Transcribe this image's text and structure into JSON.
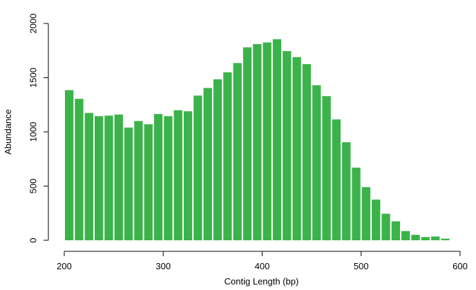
{
  "chart_data": {
    "type": "bar",
    "title": "",
    "xlabel": "Contig Length (bp)",
    "ylabel": "Abundance",
    "xlim": [
      200,
      600
    ],
    "ylim": [
      0,
      2000
    ],
    "x_ticks": [
      "200",
      "300",
      "400",
      "500",
      "600"
    ],
    "y_ticks": [
      "0",
      "500",
      "1000",
      "1500",
      "2000"
    ],
    "bar_color": "#3bb34a",
    "bin_width": 10,
    "bins": [
      {
        "x0": 200,
        "x1": 210,
        "value": 1385
      },
      {
        "x0": 210,
        "x1": 220,
        "value": 1305
      },
      {
        "x0": 220,
        "x1": 230,
        "value": 1175
      },
      {
        "x0": 230,
        "x1": 240,
        "value": 1145
      },
      {
        "x0": 240,
        "x1": 250,
        "value": 1150
      },
      {
        "x0": 250,
        "x1": 260,
        "value": 1160
      },
      {
        "x0": 260,
        "x1": 270,
        "value": 1040
      },
      {
        "x0": 270,
        "x1": 280,
        "value": 1100
      },
      {
        "x0": 280,
        "x1": 290,
        "value": 1070
      },
      {
        "x0": 290,
        "x1": 300,
        "value": 1165
      },
      {
        "x0": 300,
        "x1": 310,
        "value": 1145
      },
      {
        "x0": 310,
        "x1": 320,
        "value": 1200
      },
      {
        "x0": 320,
        "x1": 330,
        "value": 1190
      },
      {
        "x0": 330,
        "x1": 340,
        "value": 1335
      },
      {
        "x0": 340,
        "x1": 350,
        "value": 1405
      },
      {
        "x0": 350,
        "x1": 360,
        "value": 1485
      },
      {
        "x0": 360,
        "x1": 370,
        "value": 1550
      },
      {
        "x0": 370,
        "x1": 380,
        "value": 1635
      },
      {
        "x0": 380,
        "x1": 390,
        "value": 1780
      },
      {
        "x0": 390,
        "x1": 400,
        "value": 1810
      },
      {
        "x0": 400,
        "x1": 410,
        "value": 1825
      },
      {
        "x0": 410,
        "x1": 420,
        "value": 1855
      },
      {
        "x0": 420,
        "x1": 430,
        "value": 1745
      },
      {
        "x0": 430,
        "x1": 440,
        "value": 1690
      },
      {
        "x0": 440,
        "x1": 450,
        "value": 1625
      },
      {
        "x0": 450,
        "x1": 460,
        "value": 1430
      },
      {
        "x0": 460,
        "x1": 470,
        "value": 1330
      },
      {
        "x0": 470,
        "x1": 480,
        "value": 1115
      },
      {
        "x0": 480,
        "x1": 490,
        "value": 905
      },
      {
        "x0": 490,
        "x1": 500,
        "value": 670
      },
      {
        "x0": 500,
        "x1": 510,
        "value": 490
      },
      {
        "x0": 510,
        "x1": 520,
        "value": 375
      },
      {
        "x0": 520,
        "x1": 530,
        "value": 245
      },
      {
        "x0": 530,
        "x1": 540,
        "value": 175
      },
      {
        "x0": 540,
        "x1": 550,
        "value": 85
      },
      {
        "x0": 550,
        "x1": 560,
        "value": 50
      },
      {
        "x0": 560,
        "x1": 570,
        "value": 30
      },
      {
        "x0": 570,
        "x1": 580,
        "value": 35
      },
      {
        "x0": 580,
        "x1": 590,
        "value": 15
      }
    ]
  }
}
